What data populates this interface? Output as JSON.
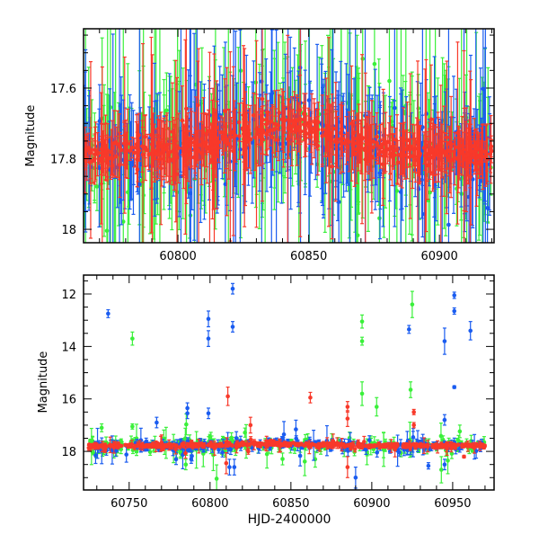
{
  "colors": {
    "blue": "#1a5cf0",
    "green": "#3af03a",
    "red": "#f8392a"
  },
  "chart_data": [
    {
      "type": "scatter",
      "panel": "top",
      "xlabel": "",
      "ylabel": "Magnitude",
      "xlim": [
        60763.9,
        60920.9
      ],
      "ylim": [
        18.038,
        17.432
      ],
      "y_inverted": true,
      "xticks": [
        60800,
        60850,
        60900
      ],
      "xtick_labels": [
        "60800",
        "60850",
        "60900"
      ],
      "yticks": [
        17.6,
        17.8,
        18
      ],
      "ytick_labels": [
        "17.6",
        "17.8",
        "18"
      ],
      "trend": {
        "x": [
          60764,
          60780,
          60800,
          60820,
          60838,
          60845,
          60860,
          60880,
          60900,
          60920
        ],
        "y": [
          17.79,
          17.78,
          17.77,
          17.745,
          17.71,
          17.7,
          17.745,
          17.77,
          17.78,
          17.79
        ]
      },
      "series": [
        {
          "name": "green",
          "color_key": "green",
          "count": 260,
          "scatter": 0.09,
          "err": 0.12
        },
        {
          "name": "blue",
          "color_key": "blue",
          "count": 260,
          "scatter": 0.07,
          "err": 0.1
        },
        {
          "name": "red",
          "color_key": "red",
          "count": 520,
          "scatter": 0.03,
          "err": 0.05
        }
      ]
    },
    {
      "type": "scatter",
      "panel": "bottom",
      "xlabel": "HJD-2400000",
      "ylabel": "Magnitude",
      "xlim": [
        60721.8,
        60975.6
      ],
      "ylim": [
        19.47,
        11.28
      ],
      "y_inverted": true,
      "xticks": [
        60750,
        60800,
        60850,
        60900,
        60950
      ],
      "xtick_labels": [
        "60750",
        "60800",
        "60850",
        "60900",
        "60950"
      ],
      "yticks": [
        12,
        14,
        16,
        18
      ],
      "ytick_labels": [
        "12",
        "14",
        "16",
        "18"
      ],
      "trend": {
        "x": [
          60725,
          60800,
          60840,
          60870,
          60900,
          60970
        ],
        "y": [
          17.79,
          17.77,
          17.71,
          17.75,
          17.78,
          17.79
        ]
      },
      "series": [
        {
          "name": "green",
          "color_key": "green",
          "count": 220,
          "scatter": 0.25,
          "err": 0.12,
          "outliers": [
            [
              60752,
              13.7,
              0.25
            ],
            [
              60894,
              13.05,
              0.25
            ],
            [
              60894,
              13.8,
              0.15
            ],
            [
              60894,
              15.8,
              0.45
            ],
            [
              60925,
              12.4,
              0.5
            ],
            [
              60924,
              15.65,
              0.3
            ],
            [
              60903,
              16.3,
              0.35
            ],
            [
              60943,
              18.7,
              0.5
            ],
            [
              60947,
              18.35,
              0.5
            ],
            [
              60733,
              17.1,
              0.15
            ],
            [
              60752,
              17.05,
              0.1
            ],
            [
              60785,
              18.5,
              0.2
            ],
            [
              60865,
              18.3,
              0.3
            ]
          ]
        },
        {
          "name": "blue",
          "color_key": "blue",
          "count": 220,
          "scatter": 0.2,
          "err": 0.1,
          "outliers": [
            [
              60737,
              12.75,
              0.15
            ],
            [
              60799,
              12.95,
              0.3
            ],
            [
              60799,
              13.7,
              0.3
            ],
            [
              60814,
              11.8,
              0.2
            ],
            [
              60814,
              13.25,
              0.2
            ],
            [
              60786,
              16.35,
              0.2
            ],
            [
              60786,
              16.55,
              0.2
            ],
            [
              60799,
              16.55,
              0.2
            ],
            [
              60767,
              16.9,
              0.2
            ],
            [
              60923,
              13.35,
              0.15
            ],
            [
              60945,
              13.8,
              0.5
            ],
            [
              60951,
              12.05,
              0.12
            ],
            [
              60951,
              12.65,
              0.12
            ],
            [
              60961,
              13.4,
              0.35
            ],
            [
              60951,
              15.55,
              0.05
            ],
            [
              60945,
              16.8,
              0.2
            ],
            [
              60890,
              19.0,
              0.4
            ],
            [
              60945,
              18.5,
              0.2
            ],
            [
              60935,
              18.55,
              0.12
            ],
            [
              60779,
              18.3,
              0.2
            ],
            [
              60812,
              18.6,
              0.3
            ],
            [
              60815,
              18.6,
              0.3
            ]
          ]
        },
        {
          "name": "red",
          "color_key": "red",
          "count": 420,
          "scatter": 0.06,
          "err": 0.05,
          "outliers": [
            [
              60811,
              15.9,
              0.35
            ],
            [
              60862,
              15.95,
              0.2
            ],
            [
              60885,
              16.3,
              0.2
            ],
            [
              60885,
              16.75,
              0.3
            ],
            [
              60926,
              16.5,
              0.1
            ],
            [
              60885,
              18.6,
              0.4
            ],
            [
              60810,
              18.45,
              0.4
            ],
            [
              60957,
              18.2,
              0.05
            ],
            [
              60825,
              17.0,
              0.3
            ],
            [
              60926,
              17.0,
              0.1
            ]
          ]
        }
      ]
    }
  ]
}
